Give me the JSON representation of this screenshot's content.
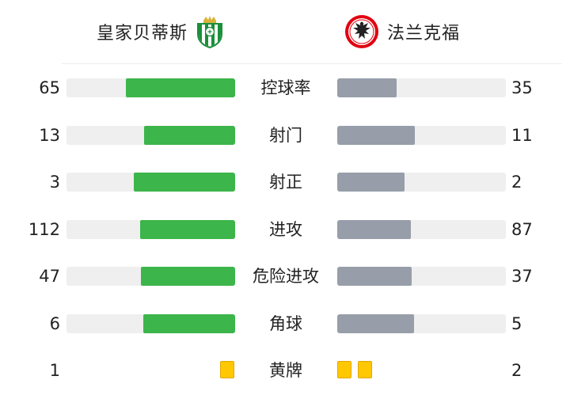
{
  "teams": {
    "home": {
      "name": "皇家贝蒂斯",
      "crest_icon": "real-betis-crest-icon",
      "color": "#3cb54a"
    },
    "away": {
      "name": "法兰克福",
      "crest_icon": "eintracht-frankfurt-crest-icon",
      "color": "#979eaa"
    }
  },
  "stats": [
    {
      "label": "控球率",
      "home": "65",
      "away": "35",
      "home_value": 65,
      "away_value": 35
    },
    {
      "label": "射门",
      "home": "13",
      "away": "11",
      "home_value": 13,
      "away_value": 11
    },
    {
      "label": "射正",
      "home": "3",
      "away": "2",
      "home_value": 3,
      "away_value": 2
    },
    {
      "label": "进攻",
      "home": "112",
      "away": "87",
      "home_value": 112,
      "away_value": 87
    },
    {
      "label": "危险进攻",
      "home": "47",
      "away": "37",
      "home_value": 47,
      "away_value": 37
    },
    {
      "label": "角球",
      "home": "6",
      "away": "5",
      "home_value": 6,
      "away_value": 5
    }
  ],
  "yellow_cards": {
    "label": "黄牌",
    "home": "1",
    "away": "2",
    "home_count": 1,
    "away_count": 2,
    "color": "#ffc800"
  }
}
